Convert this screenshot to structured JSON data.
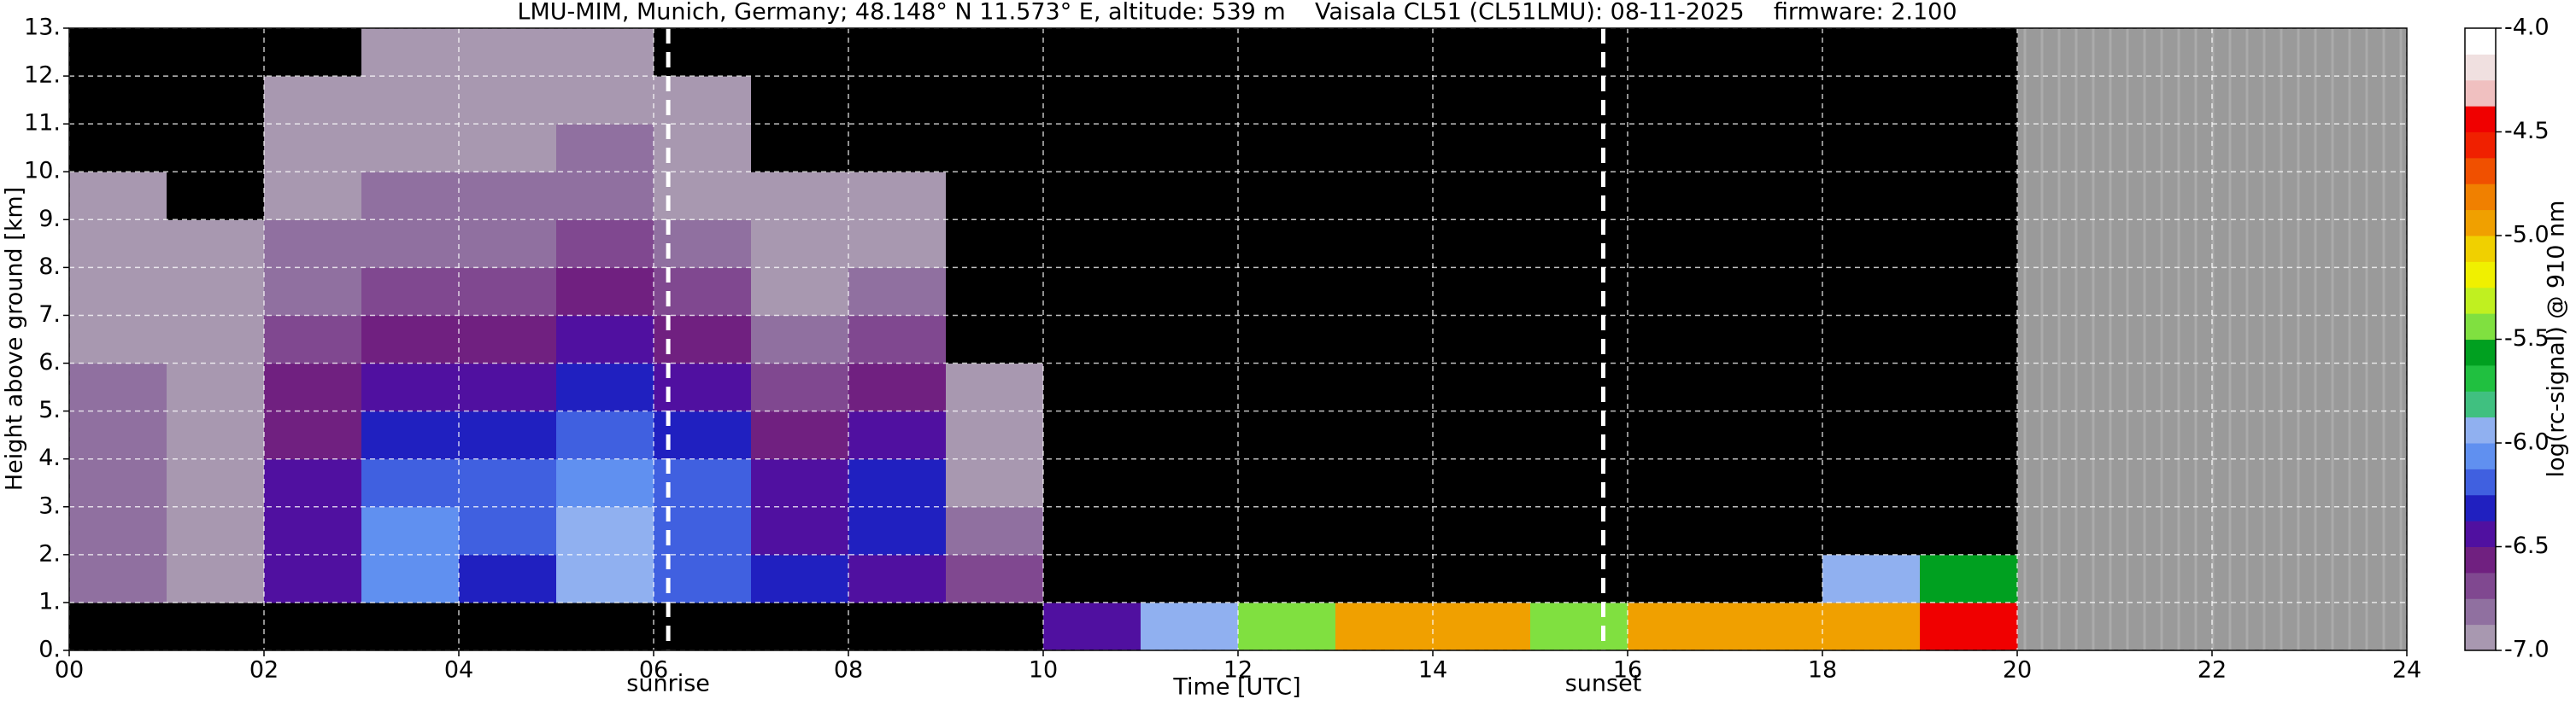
{
  "chart_data": {
    "type": "heatmap",
    "title": "LMU-MIM, Munich, Germany; 48.148° N 11.573° E, altitude: 539 m    Vaisala CL51 (CL51LMU): 08-11-2025    firmware: 2.100",
    "xlabel": "Time [UTC]",
    "ylabel": "Height above ground [km]",
    "colorbar_label": "log(rc-signal) @ 910 nm",
    "xlim": [
      0,
      24
    ],
    "ylim": [
      0,
      13
    ],
    "xticks": [
      {
        "value": 0,
        "label": "00"
      },
      {
        "value": 2,
        "label": "02"
      },
      {
        "value": 4,
        "label": "04"
      },
      {
        "value": 6,
        "label": "06"
      },
      {
        "value": 8,
        "label": "08"
      },
      {
        "value": 10,
        "label": "10"
      },
      {
        "value": 12,
        "label": "12"
      },
      {
        "value": 14,
        "label": "14"
      },
      {
        "value": 16,
        "label": "16"
      },
      {
        "value": 18,
        "label": "18"
      },
      {
        "value": 20,
        "label": "20"
      },
      {
        "value": 22,
        "label": "22"
      },
      {
        "value": 24,
        "label": "24"
      }
    ],
    "yticks": [
      {
        "value": 0,
        "label": "0."
      },
      {
        "value": 1,
        "label": "1."
      },
      {
        "value": 2,
        "label": "2."
      },
      {
        "value": 3,
        "label": "3."
      },
      {
        "value": 4,
        "label": "4."
      },
      {
        "value": 5,
        "label": "5."
      },
      {
        "value": 6,
        "label": "6."
      },
      {
        "value": 7,
        "label": "7."
      },
      {
        "value": 8,
        "label": "8."
      },
      {
        "value": 9,
        "label": "9."
      },
      {
        "value": 10,
        "label": "10."
      },
      {
        "value": 11,
        "label": "11."
      },
      {
        "value": 12,
        "label": "12."
      },
      {
        "value": 13,
        "label": "13."
      }
    ],
    "grid": true,
    "xbins": [
      0,
      1,
      2,
      3,
      4,
      5,
      6,
      7,
      8,
      9,
      10,
      11,
      12,
      13,
      14,
      15,
      16,
      17,
      18,
      19,
      20,
      21,
      22,
      23,
      24
    ],
    "ybins": [
      0,
      1,
      2,
      3,
      4,
      5,
      6,
      7,
      8,
      9,
      10,
      11,
      12,
      13
    ],
    "z": [
      [
        -7.5,
        -7.5,
        -7.5,
        -7.5,
        -7.3,
        -7.3,
        -7.3,
        -7.5,
        -7.5,
        -7.5,
        -6.5,
        -6.0,
        -5.5,
        -5.0,
        -5.0,
        -5.5,
        -5.0,
        -5.0,
        -5.0,
        -4.5,
        null,
        null,
        null,
        null
      ],
      [
        -6.8,
        -6.9,
        -6.5,
        -6.1,
        -6.3,
        -5.9,
        -6.2,
        -6.3,
        -6.5,
        -6.7,
        -7.5,
        -7.5,
        -7.5,
        -7.5,
        -7.5,
        -7.5,
        -7.5,
        -7.5,
        -6.0,
        -5.6,
        null,
        null,
        null,
        null
      ],
      [
        -6.8,
        -6.9,
        -6.4,
        -6.1,
        -6.2,
        -6.0,
        -6.2,
        -6.4,
        -6.3,
        -6.8,
        -7.5,
        -7.5,
        -7.5,
        -7.5,
        -7.5,
        -7.5,
        -7.5,
        -7.5,
        -7.5,
        -7.5,
        null,
        null,
        null,
        null
      ],
      [
        -6.8,
        -6.9,
        -6.5,
        -6.2,
        -6.2,
        -6.1,
        -6.2,
        -6.5,
        -6.3,
        -6.9,
        -7.5,
        -7.5,
        -7.5,
        -7.5,
        -7.5,
        -7.5,
        -7.5,
        -7.5,
        -7.5,
        -7.5,
        null,
        null,
        null,
        null
      ],
      [
        -6.8,
        -6.9,
        -6.6,
        -6.3,
        -6.3,
        -6.2,
        -6.3,
        -6.6,
        -6.5,
        -6.9,
        -7.5,
        -7.5,
        -7.5,
        -7.5,
        -7.5,
        -7.5,
        -7.5,
        -7.5,
        -7.5,
        -7.5,
        null,
        null,
        null,
        null
      ],
      [
        -6.8,
        -6.9,
        -6.6,
        -6.4,
        -6.4,
        -6.3,
        -6.4,
        -6.7,
        -6.6,
        -6.9,
        -7.5,
        -7.5,
        -7.5,
        -7.5,
        -7.5,
        -7.5,
        -7.5,
        -7.5,
        -7.5,
        -7.5,
        null,
        null,
        null,
        null
      ],
      [
        -6.9,
        -6.9,
        -6.7,
        -6.6,
        -6.6,
        -6.5,
        -6.6,
        -6.8,
        -6.7,
        -7.5,
        -7.5,
        -7.5,
        -7.5,
        -7.5,
        -7.5,
        -7.5,
        -7.5,
        -7.5,
        -7.5,
        -7.5,
        null,
        null,
        null,
        null
      ],
      [
        -6.9,
        -7.0,
        -6.8,
        -6.7,
        -6.7,
        -6.6,
        -6.7,
        -6.9,
        -6.8,
        -7.5,
        -7.5,
        -7.5,
        -7.5,
        -7.5,
        -7.5,
        -7.5,
        -7.5,
        -7.5,
        -7.5,
        -7.5,
        null,
        null,
        null,
        null
      ],
      [
        -7.0,
        -7.0,
        -6.8,
        -6.8,
        -6.8,
        -6.7,
        -6.8,
        -6.9,
        -6.9,
        -7.5,
        -7.5,
        -7.5,
        -7.5,
        -7.5,
        -7.5,
        -7.5,
        -7.5,
        -7.5,
        -7.5,
        -7.5,
        null,
        null,
        null,
        null
      ],
      [
        -7.0,
        -7.5,
        -6.9,
        -6.8,
        -6.8,
        -6.8,
        -6.9,
        -7.0,
        -7.0,
        -7.5,
        -7.5,
        -7.5,
        -7.5,
        -7.5,
        -7.5,
        -7.5,
        -7.5,
        -7.5,
        -7.5,
        -7.5,
        null,
        null,
        null,
        null
      ],
      [
        -7.5,
        -7.5,
        -6.9,
        -6.9,
        -6.9,
        -6.8,
        -6.9,
        -7.5,
        -7.5,
        -7.5,
        -7.5,
        -7.5,
        -7.5,
        -7.5,
        -7.5,
        -7.5,
        -7.5,
        -7.5,
        -7.5,
        -7.5,
        null,
        null,
        null,
        null
      ],
      [
        -7.5,
        -7.5,
        -7.0,
        -6.9,
        -6.9,
        -6.9,
        -7.0,
        -7.5,
        -7.5,
        -7.5,
        -7.5,
        -7.5,
        -7.5,
        -7.5,
        -7.5,
        -7.5,
        -7.5,
        -7.5,
        -7.5,
        -7.5,
        null,
        null,
        null,
        null
      ],
      [
        -7.5,
        -7.5,
        -7.5,
        -7.0,
        -7.0,
        -7.0,
        -7.5,
        -7.5,
        -7.5,
        -7.5,
        -7.5,
        -7.5,
        -7.5,
        -7.5,
        -7.5,
        -7.5,
        -7.5,
        -7.5,
        -7.5,
        -7.5,
        null,
        null,
        null,
        null
      ]
    ],
    "zlim": [
      -7,
      -4
    ],
    "zticks": [
      {
        "value": -4,
        "label": "-4.0"
      },
      -4.5,
      {
        "value": -5,
        "label": "-5.0"
      },
      -5.5,
      {
        "value": -6,
        "label": "-6.0"
      },
      -6.5,
      {
        "value": -7,
        "label": "-7.0"
      }
    ],
    "colorscale": [
      "#a898b0",
      "#9070a0",
      "#804890",
      "#702080",
      "#5010a0",
      "#2020c0",
      "#4060e0",
      "#6090f0",
      "#90b0f0",
      "#40c080",
      "#20c040",
      "#00a020",
      "#80e040",
      "#c0f020",
      "#f0f000",
      "#f0d000",
      "#f0a000",
      "#f08000",
      "#f05000",
      "#f02000",
      "#f00000",
      "#f0c0c0",
      "#f0e0e0",
      "#ffffff"
    ],
    "under_color": "#000000",
    "missing_color": "#9a9a9a",
    "annotations": [
      {
        "x": 6.15,
        "label": "sunrise"
      },
      {
        "x": 15.75,
        "label": "sunset"
      }
    ]
  }
}
